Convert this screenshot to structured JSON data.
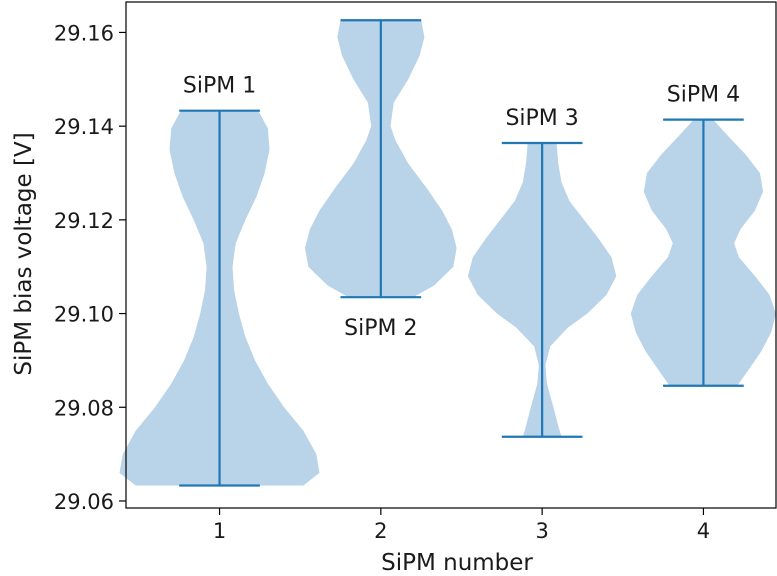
{
  "chart_data": {
    "type": "violin",
    "xlabel": "SiPM number",
    "ylabel": "SiPM bias voltage [V]",
    "xlim": [
      0.42,
      4.45
    ],
    "ylim": [
      29.0585,
      29.1665
    ],
    "x_ticks": [
      "1",
      "2",
      "3",
      "4"
    ],
    "y_ticks": [
      "29.06",
      "29.08",
      "29.10",
      "29.12",
      "29.14",
      "29.16"
    ],
    "y_tick_values": [
      29.06,
      29.08,
      29.1,
      29.12,
      29.14,
      29.16
    ],
    "fill_color": "#b9d3e8",
    "line_color": "#1f77b4",
    "grid": false,
    "series": [
      {
        "position": 1,
        "label": "SiPM 1",
        "label_anchor": "above",
        "min": 29.0633,
        "max": 29.1433,
        "profile": [
          [
            29.0633,
            0.52
          ],
          [
            29.066,
            0.62
          ],
          [
            29.07,
            0.6
          ],
          [
            29.075,
            0.52
          ],
          [
            29.08,
            0.4
          ],
          [
            29.085,
            0.3
          ],
          [
            29.09,
            0.22
          ],
          [
            29.095,
            0.16
          ],
          [
            29.1,
            0.12
          ],
          [
            29.105,
            0.09
          ],
          [
            29.11,
            0.08
          ],
          [
            29.115,
            0.1
          ],
          [
            29.12,
            0.16
          ],
          [
            29.125,
            0.23
          ],
          [
            29.13,
            0.28
          ],
          [
            29.135,
            0.31
          ],
          [
            29.1395,
            0.3
          ],
          [
            29.1433,
            0.24
          ]
        ]
      },
      {
        "position": 2,
        "label": "SiPM 2",
        "label_anchor": "below",
        "min": 29.1035,
        "max": 29.1626,
        "profile": [
          [
            29.1035,
            0.2
          ],
          [
            29.106,
            0.33
          ],
          [
            29.11,
            0.45
          ],
          [
            29.114,
            0.47
          ],
          [
            29.118,
            0.44
          ],
          [
            29.122,
            0.38
          ],
          [
            29.127,
            0.28
          ],
          [
            29.132,
            0.17
          ],
          [
            29.137,
            0.09
          ],
          [
            29.14,
            0.06
          ],
          [
            29.145,
            0.08
          ],
          [
            29.15,
            0.17
          ],
          [
            29.155,
            0.24
          ],
          [
            29.159,
            0.27
          ],
          [
            29.1626,
            0.25
          ]
        ]
      },
      {
        "position": 3,
        "label": "SiPM 3",
        "label_anchor": "above",
        "min": 29.0737,
        "max": 29.1364,
        "profile": [
          [
            29.0737,
            0.12
          ],
          [
            29.076,
            0.1
          ],
          [
            29.08,
            0.07
          ],
          [
            29.085,
            0.03
          ],
          [
            29.089,
            0.02
          ],
          [
            29.093,
            0.05
          ],
          [
            29.097,
            0.16
          ],
          [
            29.1,
            0.28
          ],
          [
            29.104,
            0.4
          ],
          [
            29.108,
            0.46
          ],
          [
            29.112,
            0.43
          ],
          [
            29.116,
            0.35
          ],
          [
            29.12,
            0.26
          ],
          [
            29.124,
            0.17
          ],
          [
            29.128,
            0.12
          ],
          [
            29.132,
            0.1
          ],
          [
            29.1364,
            0.09
          ]
        ]
      },
      {
        "position": 4,
        "label": "SiPM 4",
        "label_anchor": "above",
        "min": 29.0846,
        "max": 29.1414,
        "profile": [
          [
            29.0846,
            0.21
          ],
          [
            29.088,
            0.28
          ],
          [
            29.092,
            0.36
          ],
          [
            29.096,
            0.42
          ],
          [
            29.1,
            0.45
          ],
          [
            29.104,
            0.41
          ],
          [
            29.108,
            0.32
          ],
          [
            29.112,
            0.22
          ],
          [
            29.115,
            0.19
          ],
          [
            29.118,
            0.23
          ],
          [
            29.122,
            0.32
          ],
          [
            29.126,
            0.37
          ],
          [
            29.13,
            0.35
          ],
          [
            29.134,
            0.26
          ],
          [
            29.138,
            0.15
          ],
          [
            29.1414,
            0.06
          ]
        ]
      }
    ]
  }
}
